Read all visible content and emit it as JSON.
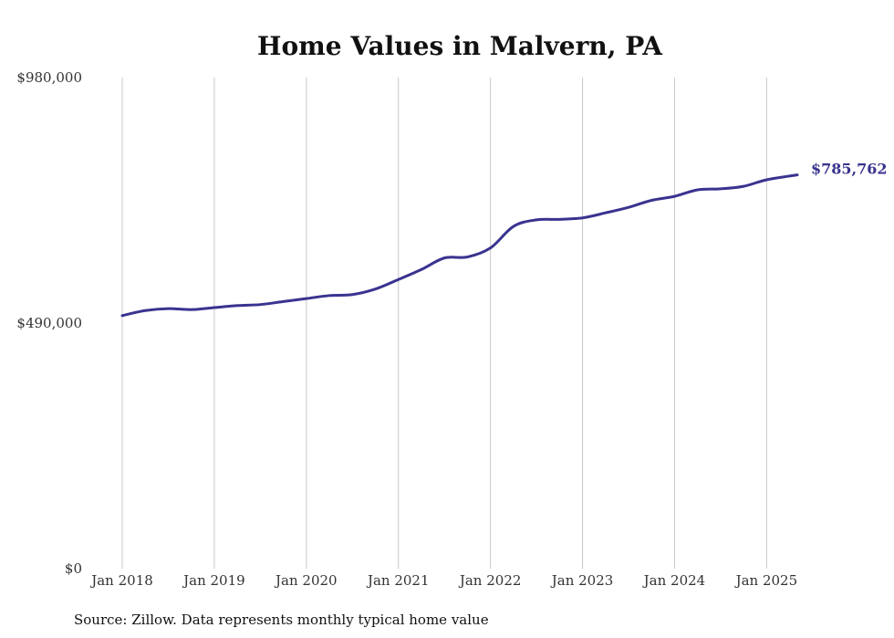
{
  "chart_data": {
    "type": "line",
    "title": "Home Values in Malvern, PA",
    "xlabel": "",
    "ylabel": "",
    "ylim": [
      0,
      980000
    ],
    "y_ticks": [
      {
        "value": 0,
        "label": "$0"
      },
      {
        "value": 490000,
        "label": "$490,000"
      },
      {
        "value": 980000,
        "label": "$980,000"
      }
    ],
    "x_ticks": [
      {
        "value": "2018-01",
        "label": "Jan 2018"
      },
      {
        "value": "2019-01",
        "label": "Jan 2019"
      },
      {
        "value": "2020-01",
        "label": "Jan 2020"
      },
      {
        "value": "2021-01",
        "label": "Jan 2021"
      },
      {
        "value": "2022-01",
        "label": "Jan 2022"
      },
      {
        "value": "2023-01",
        "label": "Jan 2023"
      },
      {
        "value": "2024-01",
        "label": "Jan 2024"
      },
      {
        "value": "2025-01",
        "label": "Jan 2025"
      }
    ],
    "xlim": [
      "2018-01",
      "2025-05"
    ],
    "grid": "vertical",
    "legend": "none",
    "color": "#39338f",
    "end_label": "$785,762",
    "series": [
      {
        "x": [
          "2018-01",
          "2018-04",
          "2018-07",
          "2018-10",
          "2019-01",
          "2019-04",
          "2019-07",
          "2019-10",
          "2020-01",
          "2020-04",
          "2020-07",
          "2020-10",
          "2021-01",
          "2021-04",
          "2021-07",
          "2021-10",
          "2022-01",
          "2022-04",
          "2022-07",
          "2022-10",
          "2023-01",
          "2023-04",
          "2023-07",
          "2023-10",
          "2024-01",
          "2024-04",
          "2024-07",
          "2024-10",
          "2025-01",
          "2025-05"
        ],
        "values": [
          505000,
          515000,
          519000,
          517000,
          521000,
          525000,
          527000,
          533000,
          539000,
          545000,
          547000,
          558000,
          577000,
          597000,
          620000,
          622000,
          640000,
          683000,
          696000,
          697000,
          700000,
          710000,
          721000,
          735000,
          743000,
          756000,
          758000,
          763000,
          776000,
          785762
        ]
      }
    ]
  },
  "source_note": "Source: Zillow. Data represents monthly typical home value"
}
